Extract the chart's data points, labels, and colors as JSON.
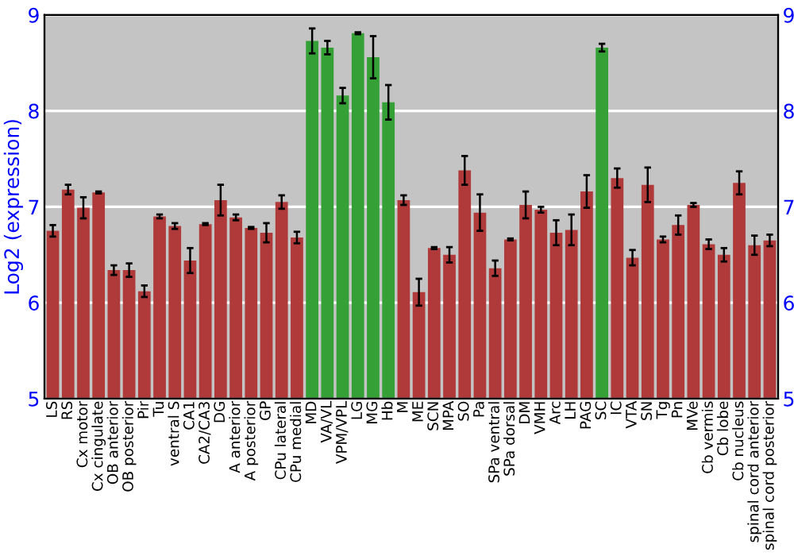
{
  "chart_data": {
    "type": "bar",
    "ylabel": "Log2 (expression)",
    "categories": [
      "LS",
      "RS",
      "Cx motor",
      "Cx cingulate",
      "OB anterior",
      "OB posterior",
      "Pir",
      "Tu",
      "ventral S",
      "CA1",
      "CA2/CA3",
      "DG",
      "A anterior",
      "A posterior",
      "GP",
      "CPu lateral",
      "CPu medial",
      "MD",
      "VA/VL",
      "VPM/VPL",
      "LG",
      "MG",
      "Hb",
      "M",
      "ME",
      "SCN",
      "MPA",
      "SO",
      "Pa",
      "SPa ventral",
      "SPa dorsal",
      "DM",
      "VMH",
      "Arc",
      "LH",
      "PAG",
      "SC",
      "IC",
      "VTA",
      "SN",
      "Tg",
      "Pn",
      "MVe",
      "Cb vermis",
      "Cb lobe",
      "Cb nucleus",
      "spinal cord anterior",
      "spinal cord posterior"
    ],
    "values": [
      6.75,
      7.18,
      6.99,
      7.15,
      6.34,
      6.34,
      6.12,
      6.9,
      6.8,
      6.44,
      6.82,
      7.07,
      6.89,
      6.78,
      6.73,
      7.05,
      6.68,
      8.73,
      8.66,
      8.16,
      8.81,
      8.56,
      8.09,
      7.07,
      6.11,
      6.57,
      6.5,
      7.38,
      6.94,
      6.36,
      6.66,
      7.02,
      6.97,
      6.73,
      6.76,
      7.16,
      8.66,
      7.3,
      6.47,
      7.23,
      6.66,
      6.81,
      7.02,
      6.61,
      6.5,
      7.25,
      6.6,
      6.65
    ],
    "errors": [
      0.06,
      0.05,
      0.11,
      0.01,
      0.05,
      0.07,
      0.06,
      0.02,
      0.03,
      0.13,
      0.01,
      0.16,
      0.03,
      0.01,
      0.1,
      0.07,
      0.06,
      0.13,
      0.07,
      0.08,
      0.01,
      0.22,
      0.18,
      0.05,
      0.14,
      0.01,
      0.08,
      0.15,
      0.19,
      0.08,
      0.01,
      0.14,
      0.03,
      0.13,
      0.16,
      0.17,
      0.04,
      0.1,
      0.08,
      0.18,
      0.03,
      0.1,
      0.02,
      0.05,
      0.07,
      0.12,
      0.1,
      0.06
    ],
    "colors": [
      "#b03a3a",
      "#b03a3a",
      "#b03a3a",
      "#b03a3a",
      "#b03a3a",
      "#b03a3a",
      "#b03a3a",
      "#b03a3a",
      "#b03a3a",
      "#b03a3a",
      "#b03a3a",
      "#b03a3a",
      "#b03a3a",
      "#b03a3a",
      "#b03a3a",
      "#b03a3a",
      "#b03a3a",
      "#35a035",
      "#35a035",
      "#35a035",
      "#35a035",
      "#35a035",
      "#35a035",
      "#b03a3a",
      "#b03a3a",
      "#b03a3a",
      "#b03a3a",
      "#b03a3a",
      "#b03a3a",
      "#b03a3a",
      "#b03a3a",
      "#b03a3a",
      "#b03a3a",
      "#b03a3a",
      "#b03a3a",
      "#b03a3a",
      "#35a035",
      "#b03a3a",
      "#b03a3a",
      "#b03a3a",
      "#b03a3a",
      "#b03a3a",
      "#b03a3a",
      "#b03a3a",
      "#b03a3a",
      "#b03a3a",
      "#b03a3a",
      "#b03a3a"
    ],
    "ylim": [
      5,
      9
    ],
    "yticks": [
      5,
      6,
      7,
      8,
      9
    ],
    "y2lim": [
      5,
      9
    ],
    "y2ticks": [
      5,
      6,
      7,
      8,
      9
    ],
    "grid": "y"
  }
}
